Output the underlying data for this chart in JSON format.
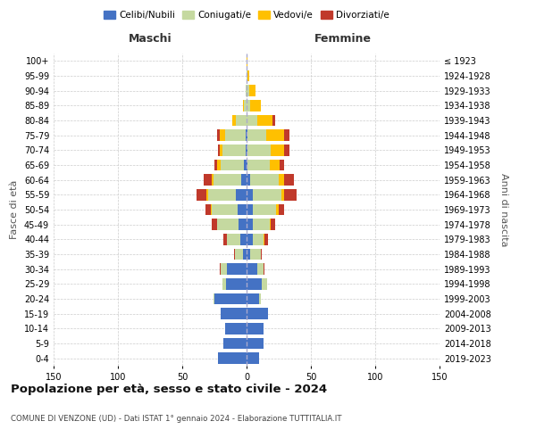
{
  "age_groups": [
    "0-4",
    "5-9",
    "10-14",
    "15-19",
    "20-24",
    "25-29",
    "30-34",
    "35-39",
    "40-44",
    "45-49",
    "50-54",
    "55-59",
    "60-64",
    "65-69",
    "70-74",
    "75-79",
    "80-84",
    "85-89",
    "90-94",
    "95-99",
    "100+"
  ],
  "birth_years": [
    "2019-2023",
    "2014-2018",
    "2009-2013",
    "2004-2008",
    "1999-2003",
    "1994-1998",
    "1989-1993",
    "1984-1988",
    "1979-1983",
    "1974-1978",
    "1969-1973",
    "1964-1968",
    "1959-1963",
    "1954-1958",
    "1949-1953",
    "1944-1948",
    "1939-1943",
    "1934-1938",
    "1929-1933",
    "1924-1928",
    "≤ 1923"
  ],
  "males": {
    "celibi": [
      22,
      18,
      17,
      20,
      25,
      16,
      15,
      3,
      5,
      6,
      7,
      8,
      4,
      2,
      1,
      1,
      0,
      0,
      0,
      0,
      0
    ],
    "coniugati": [
      0,
      0,
      0,
      0,
      1,
      3,
      5,
      6,
      10,
      17,
      20,
      22,
      22,
      18,
      18,
      16,
      8,
      2,
      1,
      0,
      0
    ],
    "vedovi": [
      0,
      0,
      0,
      0,
      0,
      0,
      0,
      0,
      0,
      0,
      1,
      1,
      1,
      3,
      2,
      4,
      3,
      1,
      0,
      0,
      0
    ],
    "divorziati": [
      0,
      0,
      0,
      0,
      0,
      0,
      1,
      1,
      3,
      4,
      4,
      8,
      6,
      2,
      1,
      2,
      0,
      0,
      0,
      0,
      0
    ]
  },
  "females": {
    "nubili": [
      10,
      13,
      13,
      17,
      10,
      12,
      8,
      3,
      5,
      5,
      5,
      5,
      3,
      1,
      1,
      1,
      0,
      0,
      0,
      0,
      0
    ],
    "coniugate": [
      0,
      0,
      0,
      0,
      1,
      4,
      5,
      8,
      8,
      13,
      18,
      22,
      22,
      17,
      18,
      14,
      8,
      3,
      2,
      1,
      0
    ],
    "vedove": [
      0,
      0,
      0,
      0,
      0,
      0,
      0,
      0,
      1,
      1,
      2,
      2,
      4,
      8,
      10,
      14,
      12,
      8,
      5,
      1,
      1
    ],
    "divorziate": [
      0,
      0,
      0,
      0,
      0,
      0,
      1,
      1,
      3,
      3,
      4,
      10,
      8,
      3,
      4,
      4,
      2,
      0,
      0,
      0,
      0
    ]
  },
  "colors": {
    "celibi": "#4472c4",
    "coniugati": "#c5d9a0",
    "vedovi": "#ffc000",
    "divorziati": "#c0392b"
  },
  "xlim": 150,
  "title": "Popolazione per età, sesso e stato civile - 2024",
  "subtitle": "COMUNE DI VENZONE (UD) - Dati ISTAT 1° gennaio 2024 - Elaborazione TUTTITALIA.IT",
  "ylabel_left": "Fasce di età",
  "ylabel_right": "Anni di nascita",
  "xlabel_left": "Maschi",
  "xlabel_right": "Femmine",
  "legend_labels": [
    "Celibi/Nubili",
    "Coniugati/e",
    "Vedovi/e",
    "Divorziati/e"
  ],
  "bg_color": "#ffffff",
  "grid_color": "#cccccc"
}
